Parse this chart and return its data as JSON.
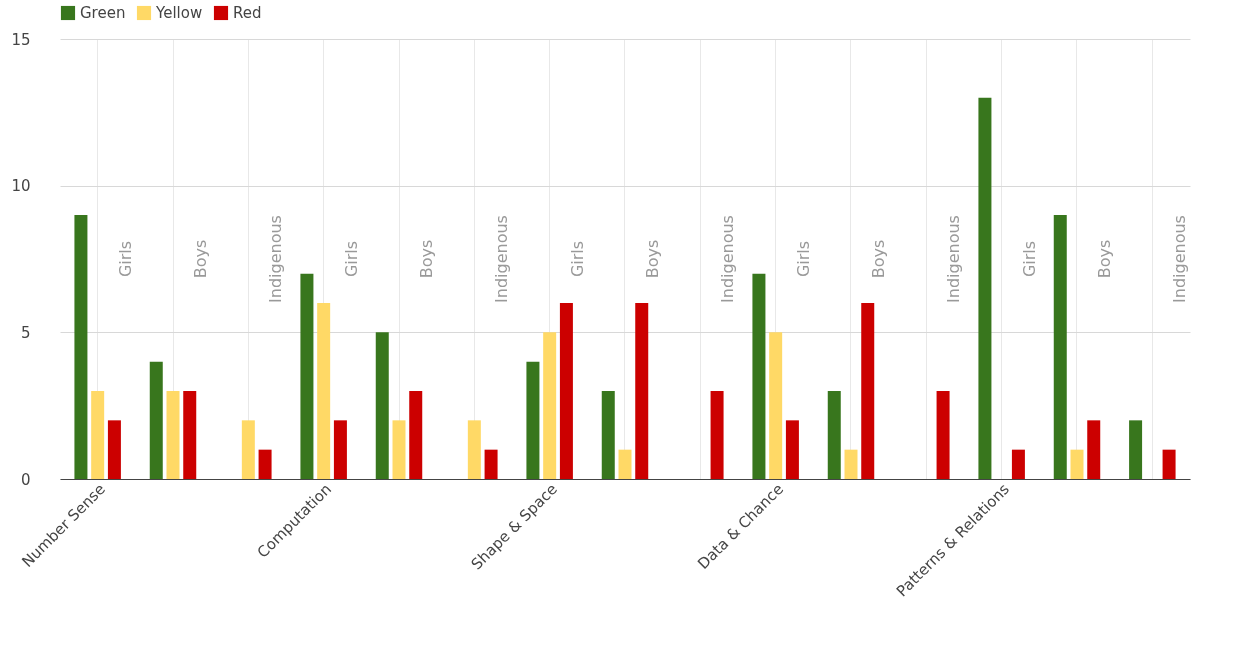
{
  "chart_data": {
    "type": "bar",
    "categories": [
      "Number Sense",
      null,
      null,
      "Computation",
      null,
      null,
      "Shape & Space",
      null,
      null,
      "Data & Chance",
      null,
      null,
      "Patterns & Relations",
      null,
      null
    ],
    "series": [
      {
        "name": "Green",
        "color": "#38761d",
        "values": [
          9,
          4,
          0,
          7,
          5,
          0,
          4,
          3,
          0,
          7,
          3,
          0,
          13,
          9,
          2
        ]
      },
      {
        "name": "Yellow",
        "color": "#ffd966",
        "values": [
          3,
          3,
          2,
          6,
          2,
          2,
          5,
          1,
          0,
          5,
          1,
          0,
          0,
          1,
          0
        ]
      },
      {
        "name": "Red",
        "color": "#cc0000",
        "values": [
          2,
          3,
          1,
          2,
          3,
          1,
          6,
          6,
          3,
          2,
          6,
          3,
          1,
          2,
          1
        ]
      }
    ],
    "annotations": [
      "Girls",
      "Boys",
      "Indigenous",
      "Girls",
      "Boys",
      "Indigenous",
      "Girls",
      "Boys",
      "Indigenous",
      "Girls",
      "Boys",
      "Indigenous",
      "Girls",
      "Boys",
      "Indigenous"
    ],
    "ylim": [
      0,
      15
    ],
    "yticks": [
      0,
      5,
      10,
      15
    ],
    "grid": true,
    "legend": "top"
  }
}
